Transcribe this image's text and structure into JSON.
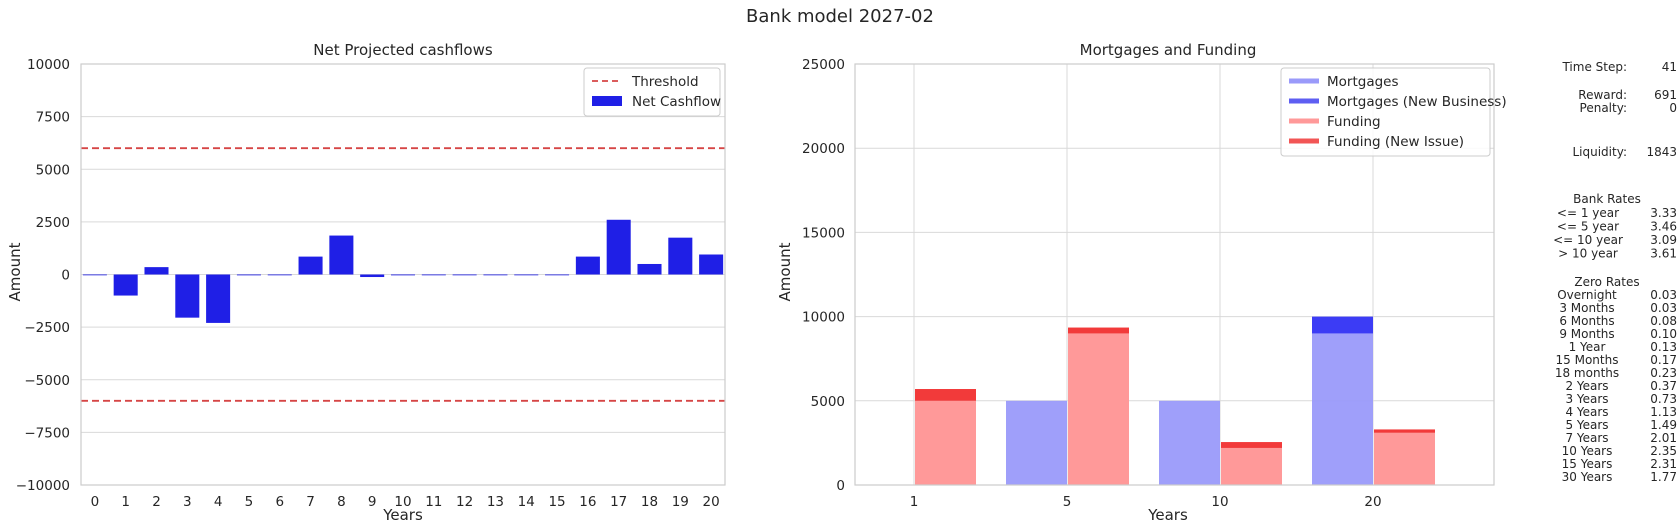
{
  "suptitle": "Bank model 2027-02",
  "chart_data": [
    {
      "type": "bar",
      "title": "Net Projected cashflows",
      "xlabel": "Years",
      "ylabel": "Amount",
      "ylim": [
        -10000,
        10000
      ],
      "yticks": [
        "10000",
        "7500",
        "5000",
        "2500",
        "0",
        "−2500",
        "−5000",
        "−7500",
        "−10000"
      ],
      "ytick_values": [
        10000,
        7500,
        5000,
        2500,
        0,
        -2500,
        -5000,
        -7500,
        -10000
      ],
      "categories": [
        "0",
        "1",
        "2",
        "3",
        "4",
        "5",
        "6",
        "7",
        "8",
        "9",
        "10",
        "11",
        "12",
        "13",
        "14",
        "15",
        "16",
        "17",
        "18",
        "19",
        "20"
      ],
      "series": [
        {
          "name": "Net Cashflow",
          "color": "#1f1fe6",
          "values": [
            0,
            -1000,
            350,
            -2050,
            -2300,
            -40,
            0,
            850,
            1850,
            -120,
            -40,
            0,
            0,
            0,
            0,
            0,
            850,
            2600,
            500,
            1750,
            950
          ]
        }
      ],
      "lines": [
        {
          "name": "Threshold",
          "color": "#d64545",
          "style": "dashed",
          "values": [
            6000,
            -6000
          ]
        }
      ],
      "legend": {
        "position": "top-right",
        "entries": [
          "Threshold",
          "Net Cashflow"
        ]
      },
      "grid": true
    },
    {
      "type": "bar",
      "title": "Mortgages and Funding",
      "xlabel": "Years",
      "ylabel": "Amount",
      "ylim": [
        0,
        25000
      ],
      "yticks": [
        "25000",
        "20000",
        "15000",
        "10000",
        "5000",
        "0"
      ],
      "ytick_values": [
        25000,
        20000,
        15000,
        10000,
        5000,
        0
      ],
      "categories": [
        "1",
        "5",
        "10",
        "20"
      ],
      "series": [
        {
          "name": "Mortgages",
          "color": "#9a9afa",
          "values": [
            0,
            5000,
            5000,
            9000
          ]
        },
        {
          "name": "Mortgages (New Business)",
          "color": "#3c3cf5",
          "values": [
            0,
            0,
            0,
            1000
          ]
        },
        {
          "name": "Funding",
          "color": "#ff9999",
          "values": [
            5000,
            9000,
            2200,
            3100
          ]
        },
        {
          "name": "Funding (New Issue)",
          "color": "#f23a3a",
          "values": [
            700,
            350,
            350,
            200
          ]
        }
      ],
      "legend": {
        "position": "top-right",
        "entries": [
          "Mortgages",
          "Mortgages (New Business)",
          "Funding",
          "Funding (New Issue)"
        ]
      },
      "grid": true
    }
  ],
  "side_panel": {
    "time_step": {
      "label": "Time Step:",
      "value": "41"
    },
    "reward": {
      "label": "Reward:",
      "value": "691"
    },
    "penalty": {
      "label": "Penalty:",
      "value": "0"
    },
    "liquidity": {
      "label": "Liquidity:",
      "value": "1843"
    },
    "bank_rates": {
      "title": "Bank Rates",
      "rows": [
        {
          "label": "<= 1 year",
          "value": "3.33"
        },
        {
          "label": "<= 5 year",
          "value": "3.46"
        },
        {
          "label": "<= 10 year",
          "value": "3.09"
        },
        {
          "label": "> 10 year",
          "value": "3.61"
        }
      ]
    },
    "zero_rates": {
      "title": "Zero Rates",
      "rows": [
        {
          "label": "Overnight",
          "value": "0.03"
        },
        {
          "label": "3 Months",
          "value": "0.03"
        },
        {
          "label": "6 Months",
          "value": "0.08"
        },
        {
          "label": "9 Months",
          "value": "0.10"
        },
        {
          "label": "1 Year",
          "value": "0.13"
        },
        {
          "label": "15 Months",
          "value": "0.17"
        },
        {
          "label": "18 months",
          "value": "0.23"
        },
        {
          "label": "2 Years",
          "value": "0.37"
        },
        {
          "label": "3 Years",
          "value": "0.73"
        },
        {
          "label": "4 Years",
          "value": "1.13"
        },
        {
          "label": "5 Years",
          "value": "1.49"
        },
        {
          "label": "7 Years",
          "value": "2.01"
        },
        {
          "label": "10 Years",
          "value": "2.35"
        },
        {
          "label": "15 Years",
          "value": "2.31"
        },
        {
          "label": "30 Years",
          "value": "1.77"
        }
      ]
    }
  }
}
